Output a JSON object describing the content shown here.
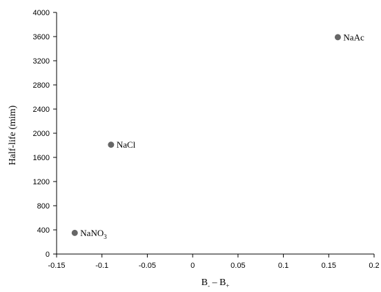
{
  "chart_data": {
    "type": "scatter",
    "title": "",
    "xlabel": {
      "main": "B",
      "sub_first": "-",
      "separator": " – ",
      "main_second": "B",
      "sub_second": "+"
    },
    "ylabel": "Half-life (mim)",
    "xlim": [
      -0.15,
      0.2
    ],
    "ylim": [
      0,
      4000
    ],
    "x_ticks": [
      "-0.15",
      "-0.1",
      "-0.05",
      "0",
      "0.05",
      "0.1",
      "0.15",
      "0.2"
    ],
    "y_ticks": [
      "0",
      "400",
      "800",
      "1200",
      "1600",
      "2000",
      "2400",
      "2800",
      "3200",
      "3600",
      "4000"
    ],
    "grid": false,
    "marker_color": "#666666",
    "points": [
      {
        "label_main": "NaNO",
        "label_sub": "3",
        "x": -0.13,
        "y": 350
      },
      {
        "label_main": "NaCl",
        "label_sub": "",
        "x": -0.09,
        "y": 1810
      },
      {
        "label_main": "NaAc",
        "label_sub": "",
        "x": 0.16,
        "y": 3590
      }
    ]
  }
}
